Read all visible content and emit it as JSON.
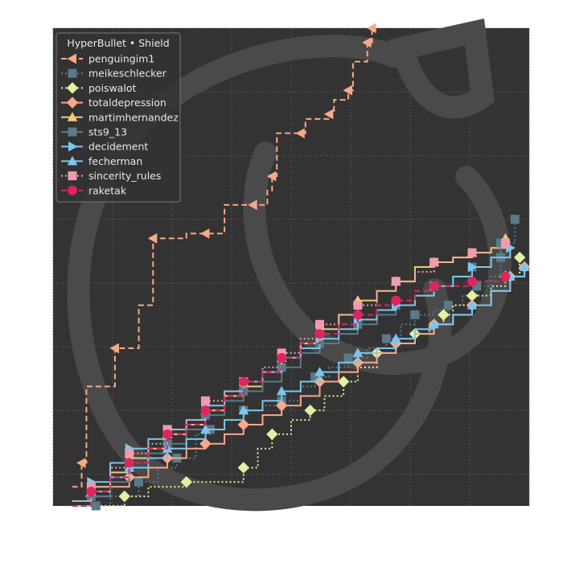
{
  "chart_data": {
    "type": "line",
    "step": true,
    "title": "",
    "xlabel": "",
    "ylabel": "",
    "xlim": [
      0,
      1
    ],
    "ylim": [
      0,
      1
    ],
    "grid": true,
    "x_tick_labels_shown": false,
    "y_tick_labels_shown": false,
    "legend": {
      "title": "HyperBullet • Shield",
      "placement": "top-left"
    },
    "colors": {
      "background": "#333333",
      "grid": "#5a5a5a",
      "watermark": "#4a4a4a"
    },
    "series": [
      {
        "name": "penguingim1",
        "color": "#f9a889",
        "dash": "dashed",
        "marker": "triangle-left",
        "points": [
          [
            0.04,
            0.04
          ],
          [
            0.06,
            0.09
          ],
          [
            0.07,
            0.25
          ],
          [
            0.13,
            0.33
          ],
          [
            0.18,
            0.42
          ],
          [
            0.21,
            0.56
          ],
          [
            0.28,
            0.57
          ],
          [
            0.32,
            0.57
          ],
          [
            0.36,
            0.63
          ],
          [
            0.42,
            0.63
          ],
          [
            0.45,
            0.66
          ],
          [
            0.46,
            0.69
          ],
          [
            0.47,
            0.78
          ],
          [
            0.52,
            0.78
          ],
          [
            0.53,
            0.81
          ],
          [
            0.58,
            0.82
          ],
          [
            0.59,
            0.85
          ],
          [
            0.62,
            0.87
          ],
          [
            0.63,
            0.93
          ],
          [
            0.66,
            0.97
          ],
          [
            0.67,
            1.0
          ]
        ]
      },
      {
        "name": "meikeschlecker",
        "color": "#5a7a8a",
        "dash": "dotted",
        "marker": "square",
        "points": [
          [
            0.04,
            0.0
          ],
          [
            0.09,
            0.0
          ],
          [
            0.12,
            0.02
          ],
          [
            0.18,
            0.05
          ],
          [
            0.22,
            0.08
          ],
          [
            0.26,
            0.1
          ],
          [
            0.3,
            0.15
          ],
          [
            0.33,
            0.16
          ],
          [
            0.36,
            0.18
          ],
          [
            0.4,
            0.2
          ],
          [
            0.44,
            0.21
          ],
          [
            0.48,
            0.22
          ],
          [
            0.52,
            0.25
          ],
          [
            0.55,
            0.27
          ],
          [
            0.58,
            0.29
          ],
          [
            0.62,
            0.31
          ],
          [
            0.66,
            0.33
          ],
          [
            0.7,
            0.35
          ],
          [
            0.73,
            0.38
          ],
          [
            0.76,
            0.4
          ],
          [
            0.8,
            0.41
          ],
          [
            0.83,
            0.42
          ],
          [
            0.86,
            0.44
          ],
          [
            0.89,
            0.46
          ],
          [
            0.92,
            0.48
          ],
          [
            0.94,
            0.52
          ],
          [
            0.96,
            0.55
          ],
          [
            0.97,
            0.6
          ]
        ]
      },
      {
        "name": "poiswalot",
        "color": "#e3f0a0",
        "dash": "dotted",
        "marker": "diamond",
        "points": [
          [
            0.1,
            0.0
          ],
          [
            0.15,
            0.02
          ],
          [
            0.2,
            0.04
          ],
          [
            0.28,
            0.05
          ],
          [
            0.36,
            0.05
          ],
          [
            0.4,
            0.08
          ],
          [
            0.43,
            0.12
          ],
          [
            0.46,
            0.15
          ],
          [
            0.5,
            0.18
          ],
          [
            0.54,
            0.2
          ],
          [
            0.57,
            0.23
          ],
          [
            0.61,
            0.26
          ],
          [
            0.64,
            0.29
          ],
          [
            0.68,
            0.32
          ],
          [
            0.72,
            0.34
          ],
          [
            0.76,
            0.36
          ],
          [
            0.79,
            0.38
          ],
          [
            0.82,
            0.4
          ],
          [
            0.84,
            0.42
          ],
          [
            0.88,
            0.44
          ],
          [
            0.92,
            0.46
          ],
          [
            0.95,
            0.48
          ],
          [
            0.98,
            0.52
          ]
        ]
      },
      {
        "name": "totaldepression",
        "color": "#f9a889",
        "dash": "solid",
        "marker": "diamond",
        "points": [
          [
            0.04,
            0.0
          ],
          [
            0.08,
            0.02
          ],
          [
            0.12,
            0.04
          ],
          [
            0.16,
            0.06
          ],
          [
            0.2,
            0.08
          ],
          [
            0.24,
            0.1
          ],
          [
            0.28,
            0.12
          ],
          [
            0.32,
            0.13
          ],
          [
            0.36,
            0.15
          ],
          [
            0.4,
            0.17
          ],
          [
            0.44,
            0.19
          ],
          [
            0.48,
            0.21
          ],
          [
            0.52,
            0.23
          ],
          [
            0.56,
            0.26
          ],
          [
            0.6,
            0.28
          ],
          [
            0.64,
            0.3
          ],
          [
            0.68,
            0.32
          ],
          [
            0.72,
            0.34
          ],
          [
            0.76,
            0.36
          ],
          [
            0.8,
            0.38
          ],
          [
            0.84,
            0.4
          ],
          [
            0.88,
            0.42
          ],
          [
            0.92,
            0.45
          ],
          [
            0.96,
            0.48
          ],
          [
            0.99,
            0.5
          ]
        ]
      },
      {
        "name": "martimhernandez",
        "color": "#f5c77e",
        "dash": "solid",
        "marker": "triangle-up",
        "points": [
          [
            0.04,
            0.01
          ],
          [
            0.08,
            0.04
          ],
          [
            0.12,
            0.07
          ],
          [
            0.16,
            0.1
          ],
          [
            0.2,
            0.12
          ],
          [
            0.24,
            0.15
          ],
          [
            0.28,
            0.17
          ],
          [
            0.32,
            0.2
          ],
          [
            0.36,
            0.23
          ],
          [
            0.4,
            0.25
          ],
          [
            0.44,
            0.28
          ],
          [
            0.48,
            0.31
          ],
          [
            0.52,
            0.34
          ],
          [
            0.56,
            0.37
          ],
          [
            0.6,
            0.4
          ],
          [
            0.64,
            0.43
          ],
          [
            0.68,
            0.45
          ],
          [
            0.72,
            0.47
          ],
          [
            0.76,
            0.5
          ],
          [
            0.8,
            0.51
          ],
          [
            0.84,
            0.52
          ],
          [
            0.88,
            0.53
          ],
          [
            0.92,
            0.54
          ],
          [
            0.95,
            0.56
          ]
        ]
      },
      {
        "name": "sts9_13",
        "color": "#5a7a8a",
        "dash": "solid",
        "marker": "square",
        "points": [
          [
            0.04,
            0.0
          ],
          [
            0.08,
            0.02
          ],
          [
            0.12,
            0.05
          ],
          [
            0.16,
            0.08
          ],
          [
            0.2,
            0.11
          ],
          [
            0.24,
            0.13
          ],
          [
            0.28,
            0.16
          ],
          [
            0.32,
            0.19
          ],
          [
            0.36,
            0.22
          ],
          [
            0.4,
            0.24
          ],
          [
            0.44,
            0.26
          ],
          [
            0.48,
            0.29
          ],
          [
            0.52,
            0.32
          ],
          [
            0.56,
            0.34
          ],
          [
            0.6,
            0.36
          ],
          [
            0.64,
            0.38
          ],
          [
            0.68,
            0.4
          ],
          [
            0.72,
            0.42
          ],
          [
            0.76,
            0.44
          ],
          [
            0.8,
            0.46
          ],
          [
            0.84,
            0.48
          ],
          [
            0.88,
            0.5
          ],
          [
            0.92,
            0.52
          ],
          [
            0.94,
            0.55
          ]
        ]
      },
      {
        "name": "decidement",
        "color": "#7cc6ee",
        "dash": "solid",
        "marker": "triangle-right",
        "points": [
          [
            0.04,
            0.01
          ],
          [
            0.08,
            0.05
          ],
          [
            0.12,
            0.09
          ],
          [
            0.16,
            0.12
          ],
          [
            0.2,
            0.14
          ],
          [
            0.24,
            0.16
          ],
          [
            0.28,
            0.18
          ],
          [
            0.32,
            0.21
          ],
          [
            0.36,
            0.24
          ],
          [
            0.4,
            0.26
          ],
          [
            0.44,
            0.28
          ],
          [
            0.48,
            0.31
          ],
          [
            0.52,
            0.33
          ],
          [
            0.56,
            0.35
          ],
          [
            0.6,
            0.37
          ],
          [
            0.64,
            0.39
          ],
          [
            0.68,
            0.41
          ],
          [
            0.72,
            0.42
          ],
          [
            0.76,
            0.44
          ],
          [
            0.8,
            0.46
          ],
          [
            0.84,
            0.48
          ],
          [
            0.88,
            0.5
          ],
          [
            0.92,
            0.52
          ],
          [
            0.96,
            0.54
          ]
        ]
      },
      {
        "name": "fecherman",
        "color": "#7cc6ee",
        "dash": "solid",
        "marker": "triangle-up",
        "points": [
          [
            0.04,
            0.0
          ],
          [
            0.08,
            0.03
          ],
          [
            0.12,
            0.06
          ],
          [
            0.16,
            0.08
          ],
          [
            0.2,
            0.1
          ],
          [
            0.24,
            0.12
          ],
          [
            0.28,
            0.14
          ],
          [
            0.32,
            0.16
          ],
          [
            0.36,
            0.18
          ],
          [
            0.4,
            0.2
          ],
          [
            0.44,
            0.22
          ],
          [
            0.48,
            0.24
          ],
          [
            0.52,
            0.26
          ],
          [
            0.56,
            0.28
          ],
          [
            0.6,
            0.3
          ],
          [
            0.64,
            0.32
          ],
          [
            0.68,
            0.33
          ],
          [
            0.72,
            0.35
          ],
          [
            0.76,
            0.37
          ],
          [
            0.8,
            0.38
          ],
          [
            0.84,
            0.4
          ],
          [
            0.88,
            0.42
          ],
          [
            0.92,
            0.45
          ],
          [
            0.96,
            0.48
          ],
          [
            0.99,
            0.5
          ]
        ]
      },
      {
        "name": "sincerity_rules",
        "color": "#f29bb0",
        "dash": "dotted",
        "marker": "square",
        "points": [
          [
            0.04,
            0.01
          ],
          [
            0.08,
            0.04
          ],
          [
            0.12,
            0.08
          ],
          [
            0.16,
            0.11
          ],
          [
            0.2,
            0.13
          ],
          [
            0.24,
            0.16
          ],
          [
            0.28,
            0.18
          ],
          [
            0.32,
            0.22
          ],
          [
            0.36,
            0.24
          ],
          [
            0.4,
            0.26
          ],
          [
            0.44,
            0.29
          ],
          [
            0.48,
            0.32
          ],
          [
            0.52,
            0.35
          ],
          [
            0.56,
            0.38
          ],
          [
            0.6,
            0.4
          ],
          [
            0.64,
            0.42
          ],
          [
            0.68,
            0.45
          ],
          [
            0.72,
            0.47
          ],
          [
            0.76,
            0.49
          ],
          [
            0.8,
            0.51
          ],
          [
            0.84,
            0.52
          ],
          [
            0.88,
            0.53
          ],
          [
            0.92,
            0.54
          ],
          [
            0.95,
            0.55
          ]
        ]
      },
      {
        "name": "raketak",
        "color": "#e0245e",
        "dash": "dashed",
        "marker": "circle",
        "points": [
          [
            0.04,
            0.0
          ],
          [
            0.08,
            0.03
          ],
          [
            0.12,
            0.06
          ],
          [
            0.16,
            0.09
          ],
          [
            0.2,
            0.12
          ],
          [
            0.24,
            0.15
          ],
          [
            0.28,
            0.17
          ],
          [
            0.32,
            0.2
          ],
          [
            0.36,
            0.23
          ],
          [
            0.4,
            0.26
          ],
          [
            0.44,
            0.28
          ],
          [
            0.48,
            0.31
          ],
          [
            0.52,
            0.34
          ],
          [
            0.56,
            0.36
          ],
          [
            0.6,
            0.38
          ],
          [
            0.64,
            0.4
          ],
          [
            0.68,
            0.42
          ],
          [
            0.72,
            0.43
          ],
          [
            0.76,
            0.45
          ],
          [
            0.8,
            0.46
          ],
          [
            0.84,
            0.46
          ],
          [
            0.88,
            0.47
          ],
          [
            0.92,
            0.47
          ],
          [
            0.95,
            0.48
          ]
        ]
      }
    ]
  }
}
